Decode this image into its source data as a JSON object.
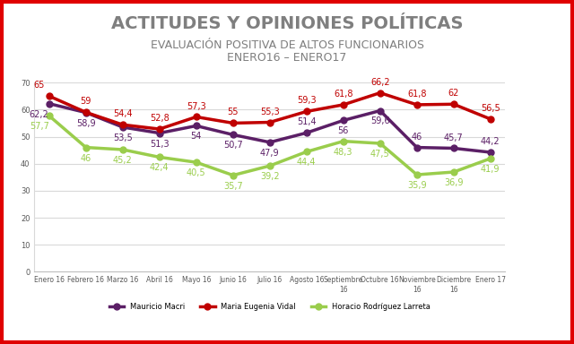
{
  "chart_data": {
    "type": "line",
    "title": "ACTITUDES Y OPINIONES POLÍTICAS",
    "subtitle": "EVALUACIÓN POSITIVA DE ALTOS FUNCIONARIOS\nENERO16 – ENERO17",
    "categories": [
      "Enero 16",
      "Febrero 16",
      "Marzo 16",
      "Abril 16",
      "Mayo 16",
      "Junio 16",
      "Julio 16",
      "Agosto 16",
      "Septiembre 16",
      "Octubre 16",
      "Noviembre 16",
      "Diciembre 16",
      "Enero 17"
    ],
    "series": [
      {
        "name": "Mauricio Macri",
        "color": "#5b1f66",
        "marker": "circle",
        "values": [
          62.2,
          58.9,
          53.5,
          51.3,
          54,
          50.7,
          47.9,
          51.4,
          56,
          59.6,
          46,
          45.7,
          44.2
        ],
        "value_labels": [
          "62,2",
          "58,9",
          "53,5",
          "51,3",
          "54",
          "50,7",
          "47,9",
          "51,4",
          "56",
          "59,6",
          "46",
          "45,7",
          "44,2"
        ]
      },
      {
        "name": "Maria Eugenia Vidal",
        "color": "#c00000",
        "marker": "circle",
        "values": [
          65,
          59,
          54.4,
          52.8,
          57.3,
          55,
          55.3,
          59.3,
          61.8,
          66.2,
          61.8,
          62,
          56.5
        ],
        "value_labels": [
          "65",
          "59",
          "54,4",
          "52,8",
          "57,3",
          "55",
          "55,3",
          "59,3",
          "61,8",
          "66,2",
          "61,8",
          "62",
          "56,5"
        ]
      },
      {
        "name": "Horacio Rodríguez Larreta",
        "color": "#9acd4c",
        "marker": "circle",
        "values": [
          57.7,
          46,
          45.2,
          42.4,
          40.5,
          35.7,
          39.2,
          44.4,
          48.3,
          47.5,
          35.9,
          36.9,
          41.9
        ],
        "value_labels": [
          "57,7",
          "46",
          "45,2",
          "42,4",
          "40,5",
          "35,7",
          "39,2",
          "44,4",
          "48,3",
          "47,5",
          "35,9",
          "36,9",
          "41,9"
        ]
      }
    ],
    "ylim": [
      0,
      70
    ],
    "yticks": [
      0,
      10,
      20,
      30,
      40,
      50,
      60,
      70
    ],
    "grid": true,
    "legend": "bottom",
    "data_labels": true
  }
}
